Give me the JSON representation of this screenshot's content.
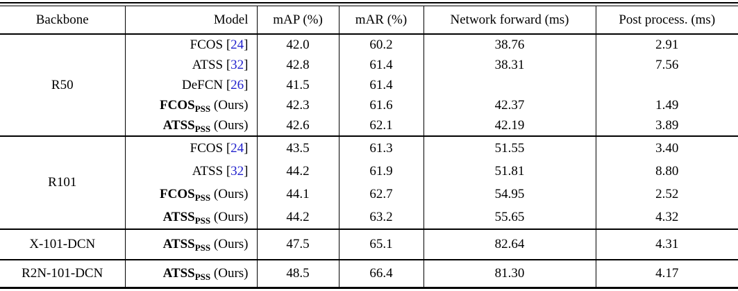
{
  "table": {
    "colors": {
      "cite_blue": "#2222CC",
      "text": "#000000",
      "background": "#ffffff"
    },
    "citation_brackets": {
      "open": "[",
      "close": "]"
    },
    "columns": [
      {
        "label": "Backbone"
      },
      {
        "label": "Model"
      },
      {
        "label": "mAP (%)"
      },
      {
        "label": "mAR (%)"
      },
      {
        "label": "Network forward (ms)"
      },
      {
        "label": "Post process. (ms)"
      }
    ],
    "sections": [
      {
        "backbone": "R50",
        "rows": [
          {
            "name": "FCOS",
            "cite": "24",
            "bold": false,
            "sub": "",
            "suffix": "",
            "map": "42.0",
            "mar": "60.2",
            "forward": "38.76",
            "post": "2.91"
          },
          {
            "name": "ATSS",
            "cite": "32",
            "bold": false,
            "sub": "",
            "suffix": "",
            "map": "42.8",
            "mar": "61.4",
            "forward": "38.31",
            "post": "7.56"
          },
          {
            "name": "DeFCN",
            "cite": "26",
            "bold": false,
            "sub": "",
            "suffix": "",
            "map": "41.5",
            "mar": "61.4",
            "forward": "",
            "post": ""
          },
          {
            "name": "FCOS",
            "cite": "",
            "bold": true,
            "sub": "PSS",
            "suffix": "(Ours)",
            "map": "42.3",
            "mar": "61.6",
            "forward": "42.37",
            "post": "1.49"
          },
          {
            "name": "ATSS",
            "cite": "",
            "bold": true,
            "sub": "PSS",
            "suffix": "(Ours)",
            "map": "42.6",
            "mar": "62.1",
            "forward": "42.19",
            "post": "3.89"
          }
        ]
      },
      {
        "backbone": "R101",
        "rows": [
          {
            "name": "FCOS",
            "cite": "24",
            "bold": false,
            "sub": "",
            "suffix": "",
            "map": "43.5",
            "mar": "61.3",
            "forward": "51.55",
            "post": "3.40"
          },
          {
            "name": "ATSS",
            "cite": "32",
            "bold": false,
            "sub": "",
            "suffix": "",
            "map": "44.2",
            "mar": "61.9",
            "forward": "51.81",
            "post": "8.80"
          },
          {
            "name": "FCOS",
            "cite": "",
            "bold": true,
            "sub": "PSS",
            "suffix": "(Ours)",
            "map": "44.1",
            "mar": "62.7",
            "forward": "54.95",
            "post": "2.52"
          },
          {
            "name": "ATSS",
            "cite": "",
            "bold": true,
            "sub": "PSS",
            "suffix": "(Ours)",
            "map": "44.2",
            "mar": "63.2",
            "forward": "55.65",
            "post": "4.32"
          }
        ]
      },
      {
        "backbone": "X-101-DCN",
        "rows": [
          {
            "name": "ATSS",
            "cite": "",
            "bold": true,
            "sub": "PSS",
            "suffix": "(Ours)",
            "map": "47.5",
            "mar": "65.1",
            "forward": "82.64",
            "post": "4.31"
          }
        ]
      },
      {
        "backbone": "R2N-101-DCN",
        "rows": [
          {
            "name": "ATSS",
            "cite": "",
            "bold": true,
            "sub": "PSS",
            "suffix": "(Ours)",
            "map": "48.5",
            "mar": "66.4",
            "forward": "81.30",
            "post": "4.17"
          }
        ]
      }
    ]
  }
}
